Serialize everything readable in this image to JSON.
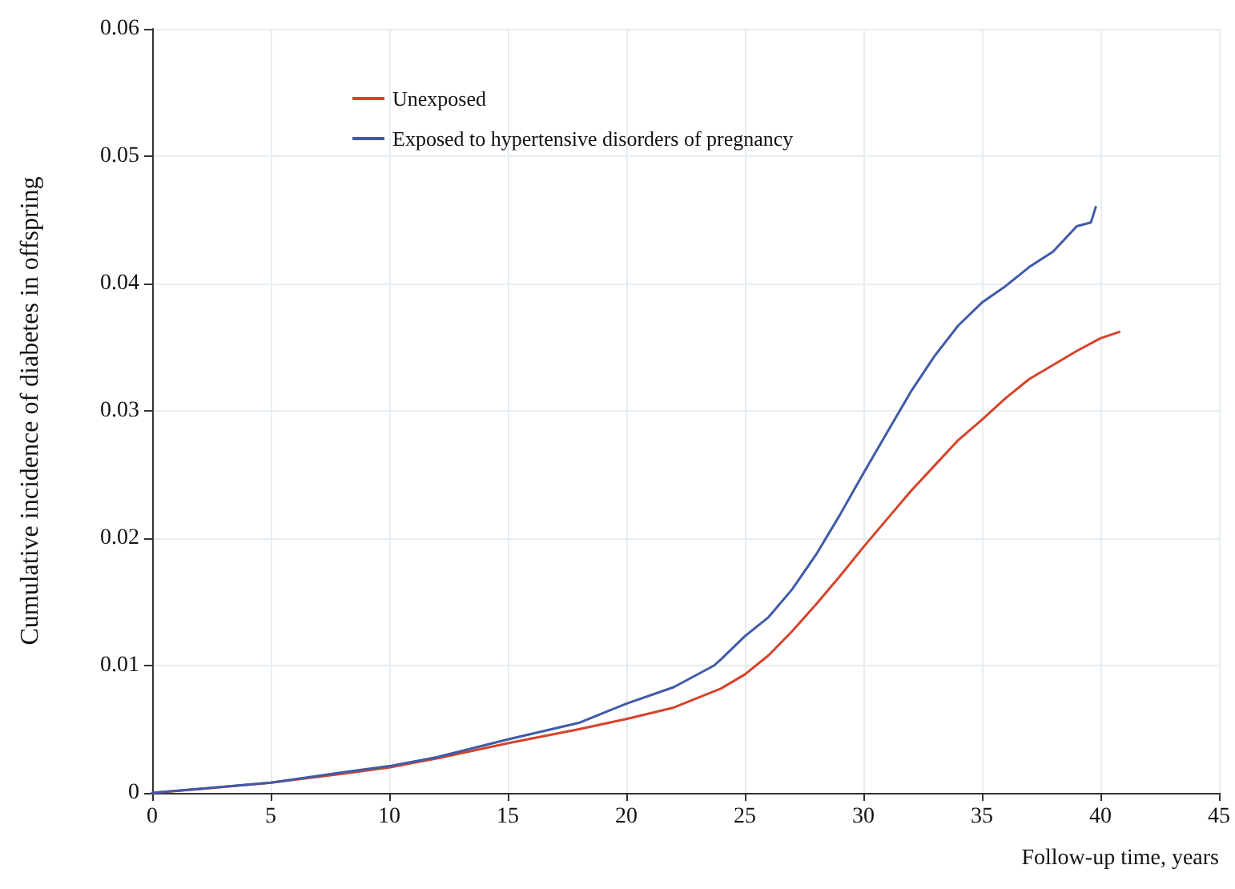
{
  "chart_data": {
    "type": "line",
    "xlabel": "Follow-up time, years",
    "ylabel": "Cumulative incidence of diabetes in offspring",
    "xlim": [
      0,
      45
    ],
    "xticks": [
      0,
      5,
      10,
      15,
      20,
      25,
      30,
      35,
      40,
      45
    ],
    "ylim": [
      0,
      0.06
    ],
    "yticks": [
      0,
      0.01,
      0.02,
      0.03,
      0.04,
      0.05,
      0.06
    ],
    "grid": true,
    "legend": "top",
    "marker": "none",
    "line_style": "solid",
    "series": [
      {
        "name": "Unexposed",
        "color": "#d6432a",
        "x": [
          0,
          2,
          5,
          8,
          10,
          12,
          15,
          18,
          20,
          22,
          24,
          25,
          26,
          27,
          28,
          29,
          30,
          31,
          32,
          33,
          34,
          35,
          36,
          37,
          38,
          39,
          40,
          40.8
        ],
        "values": [
          0,
          0.0003,
          0.0008,
          0.0015,
          0.002,
          0.0027,
          0.0039,
          0.005,
          0.0058,
          0.0067,
          0.0082,
          0.0093,
          0.0108,
          0.0127,
          0.0148,
          0.017,
          0.0193,
          0.0215,
          0.0237,
          0.0257,
          0.0277,
          0.0293,
          0.031,
          0.0325,
          0.0336,
          0.0347,
          0.0357,
          0.0362
        ]
      },
      {
        "name": "Exposed to hypertensive disorders of pregnancy",
        "color": "#3f5ba8",
        "x": [
          0,
          5,
          8,
          10,
          12,
          15,
          18,
          20,
          22,
          23.7,
          24,
          25,
          26,
          27,
          28,
          29,
          30,
          31,
          32,
          33,
          34,
          35,
          36,
          37,
          38,
          39,
          39.6,
          39.8
        ],
        "values": [
          0,
          0.0008,
          0.0016,
          0.0021,
          0.0028,
          0.0042,
          0.0055,
          0.007,
          0.0083,
          0.01,
          0.0105,
          0.0123,
          0.0138,
          0.016,
          0.0187,
          0.0218,
          0.0251,
          0.0283,
          0.0315,
          0.0343,
          0.0367,
          0.0385,
          0.0398,
          0.0413,
          0.0425,
          0.0445,
          0.0448,
          0.046
        ]
      }
    ]
  }
}
